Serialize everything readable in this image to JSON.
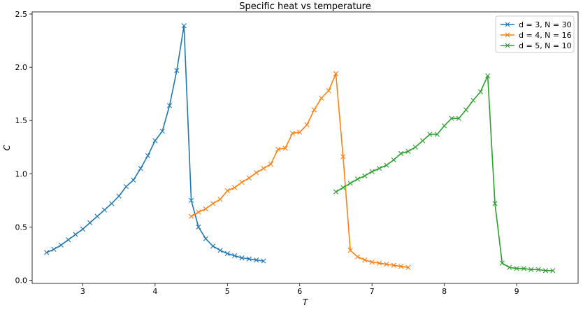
{
  "chart_data": {
    "type": "line",
    "title": "Specific heat vs temperature",
    "xlabel": "T",
    "ylabel": "C",
    "xlim": [
      2.3,
      9.85
    ],
    "ylim": [
      -0.03,
      2.52
    ],
    "xticks": [
      "3",
      "4",
      "5",
      "6",
      "7",
      "8",
      "9"
    ],
    "yticks": [
      "0.0",
      "0.5",
      "1.0",
      "1.5",
      "2.0",
      "2.5"
    ],
    "grid": false,
    "legend_position": "top-right",
    "marker": "x",
    "series": [
      {
        "name": "d = 3, N = 30",
        "color": "#1f77b4",
        "x": [
          2.5,
          2.6,
          2.7,
          2.8,
          2.9,
          3.0,
          3.1,
          3.2,
          3.3,
          3.4,
          3.5,
          3.6,
          3.7,
          3.8,
          3.9,
          4.0,
          4.1,
          4.2,
          4.3,
          4.4,
          4.5,
          4.6,
          4.7,
          4.8,
          4.9,
          5.0,
          5.1,
          5.2,
          5.3,
          5.4,
          5.5
        ],
        "y": [
          0.26,
          0.29,
          0.33,
          0.38,
          0.43,
          0.48,
          0.54,
          0.6,
          0.66,
          0.72,
          0.79,
          0.88,
          0.94,
          1.05,
          1.17,
          1.31,
          1.4,
          1.64,
          1.97,
          2.39,
          0.75,
          0.5,
          0.39,
          0.32,
          0.28,
          0.25,
          0.23,
          0.21,
          0.2,
          0.19,
          0.18
        ]
      },
      {
        "name": "d = 4, N = 16",
        "color": "#ff7f0e",
        "x": [
          4.5,
          4.6,
          4.7,
          4.8,
          4.9,
          5.0,
          5.1,
          5.2,
          5.3,
          5.4,
          5.5,
          5.6,
          5.7,
          5.8,
          5.9,
          6.0,
          6.1,
          6.2,
          6.3,
          6.4,
          6.5,
          6.6,
          6.7,
          6.8,
          6.9,
          7.0,
          7.1,
          7.2,
          7.3,
          7.4,
          7.5
        ],
        "y": [
          0.6,
          0.64,
          0.67,
          0.72,
          0.76,
          0.84,
          0.87,
          0.92,
          0.96,
          1.01,
          1.05,
          1.09,
          1.23,
          1.24,
          1.38,
          1.39,
          1.46,
          1.6,
          1.71,
          1.78,
          1.94,
          1.16,
          0.28,
          0.22,
          0.19,
          0.17,
          0.16,
          0.15,
          0.14,
          0.13,
          0.12
        ]
      },
      {
        "name": "d = 5, N = 10",
        "color": "#2ca02c",
        "x": [
          6.5,
          6.6,
          6.7,
          6.8,
          6.9,
          7.0,
          7.1,
          7.2,
          7.3,
          7.4,
          7.5,
          7.6,
          7.7,
          7.8,
          7.9,
          8.0,
          8.1,
          8.2,
          8.3,
          8.4,
          8.5,
          8.6,
          8.7,
          8.8,
          8.9,
          9.0,
          9.1,
          9.2,
          9.3,
          9.4,
          9.5
        ],
        "y": [
          0.83,
          0.87,
          0.91,
          0.95,
          0.98,
          1.02,
          1.05,
          1.08,
          1.13,
          1.19,
          1.21,
          1.25,
          1.31,
          1.37,
          1.37,
          1.45,
          1.52,
          1.52,
          1.6,
          1.69,
          1.77,
          1.92,
          0.72,
          0.16,
          0.12,
          0.11,
          0.11,
          0.1,
          0.1,
          0.09,
          0.09
        ]
      }
    ]
  }
}
